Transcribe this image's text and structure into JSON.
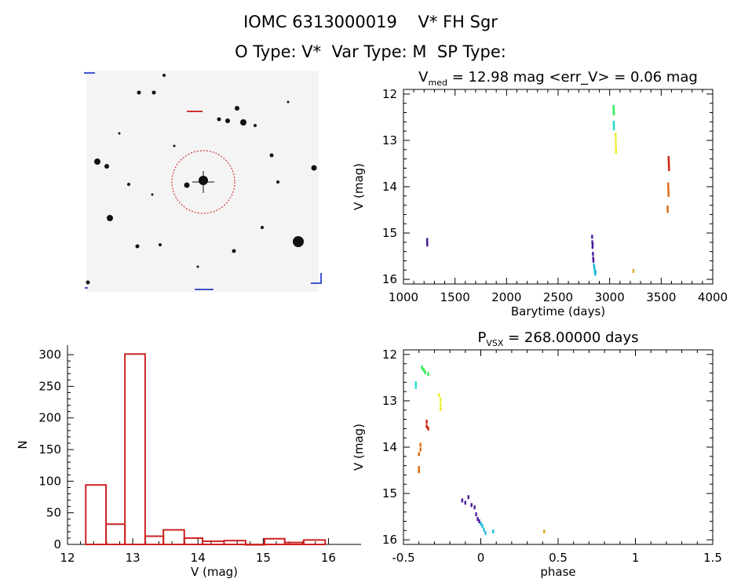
{
  "header": {
    "line1": "IOMC 6313000019    V* FH Sgr",
    "line2": "O Type: V*  Var Type: M  SP Type:"
  },
  "colors": {
    "histogram": "#cc2222",
    "finder_circle": "#cc1111",
    "seg_purple": "#4a1a9a",
    "seg_cyan": "#22bbdd",
    "seg_green": "#33ee55",
    "seg_teal": "#22ddcc",
    "seg_yellow": "#eeee22",
    "seg_red": "#cc2211",
    "seg_orange": "#dd6611",
    "seg_gold": "#ddaa22"
  },
  "chart_data": [
    {
      "id": "lightcurve",
      "type": "scatter",
      "title": "V",
      "title_sub": "med",
      "title_rest": " = 12.98 mag <err_V> = 0.06 mag",
      "xlabel": "Barytime (days)",
      "ylabel": "V (mag)",
      "xlim": [
        1000,
        4000
      ],
      "ylim": [
        16.1,
        11.9
      ],
      "xticks": [
        1000,
        1500,
        2000,
        2500,
        3000,
        3500,
        4000
      ],
      "yticks": [
        12,
        13,
        14,
        15,
        16
      ],
      "series": [
        {
          "color": "#4a1a9a",
          "points": [
            [
              1230,
              15.15
            ],
            [
              1230,
              15.2
            ],
            [
              1231,
              15.25
            ],
            [
              2830,
              15.08
            ],
            [
              2832,
              15.2
            ],
            [
              2834,
              15.3
            ],
            [
              2836,
              15.25
            ],
            [
              2838,
              15.45
            ],
            [
              2840,
              15.55
            ],
            [
              2843,
              15.6
            ]
          ]
        },
        {
          "color": "#22bbdd",
          "points": [
            [
              2848,
              15.7
            ],
            [
              2852,
              15.75
            ],
            [
              2856,
              15.82
            ],
            [
              2860,
              15.88
            ],
            [
              2864,
              15.85
            ]
          ]
        },
        {
          "color": "#33ee55",
          "points": [
            [
              3038,
              12.28
            ],
            [
              3039,
              12.33
            ],
            [
              3040,
              12.38
            ],
            [
              3041,
              12.42
            ]
          ]
        },
        {
          "color": "#22ddcc",
          "points": [
            [
              3040,
              12.62
            ],
            [
              3041,
              12.68
            ],
            [
              3042,
              12.74
            ]
          ]
        },
        {
          "color": "#eeee22",
          "points": [
            [
              3058,
              12.88
            ],
            [
              3059,
              12.98
            ],
            [
              3060,
              13.08
            ],
            [
              3061,
              13.18
            ],
            [
              3062,
              13.25
            ]
          ]
        },
        {
          "color": "#cc2211",
          "points": [
            [
              3572,
              13.38
            ],
            [
              3573,
              13.45
            ],
            [
              3574,
              13.5
            ],
            [
              3575,
              13.56
            ],
            [
              3576,
              13.62
            ]
          ]
        },
        {
          "color": "#dd6611",
          "points": [
            [
              3568,
              13.95
            ],
            [
              3569,
              14.02
            ],
            [
              3570,
              14.1
            ],
            [
              3571,
              14.18
            ],
            [
              3562,
              14.45
            ],
            [
              3563,
              14.52
            ]
          ]
        },
        {
          "color": "#ddaa22",
          "points": [
            [
              3230,
              15.82
            ]
          ]
        }
      ]
    },
    {
      "id": "histogram",
      "type": "bar",
      "xlabel": "V (mag)",
      "ylabel": "N",
      "xlim": [
        12,
        16.5
      ],
      "ylim": [
        0,
        315
      ],
      "xticks": [
        12,
        13,
        14,
        15,
        16
      ],
      "yticks": [
        0,
        50,
        100,
        150,
        200,
        250,
        300
      ],
      "bin_edges": [
        12.28,
        12.59,
        12.88,
        13.19,
        13.47,
        13.79,
        14.07,
        14.4,
        14.73,
        15.02,
        15.33,
        15.62,
        15.95
      ],
      "values": [
        94,
        32,
        301,
        13,
        23,
        10,
        5,
        6,
        0,
        9,
        3,
        7
      ]
    },
    {
      "id": "phased",
      "type": "scatter",
      "title": "P",
      "title_sub": "VSX",
      "title_rest": " = 268.00000 days",
      "xlabel": "phase",
      "ylabel": "V (mag)",
      "xlim": [
        -0.5,
        1.5
      ],
      "ylim": [
        16.1,
        11.9
      ],
      "xticks": [
        -0.5,
        0.0,
        0.5,
        1.0,
        1.5
      ],
      "ytick_labels": [
        12,
        13,
        14,
        15,
        16
      ],
      "series": [
        {
          "color": "#4a1a9a",
          "points": [
            [
              -0.12,
              15.15
            ],
            [
              -0.1,
              15.2
            ],
            [
              -0.08,
              15.08
            ],
            [
              -0.06,
              15.25
            ],
            [
              -0.04,
              15.3
            ],
            [
              -0.03,
              15.45
            ],
            [
              -0.02,
              15.55
            ],
            [
              -0.01,
              15.6
            ]
          ]
        },
        {
          "color": "#22bbdd",
          "points": [
            [
              0.0,
              15.65
            ],
            [
              0.01,
              15.7
            ],
            [
              0.02,
              15.78
            ],
            [
              0.03,
              15.85
            ],
            [
              0.08,
              15.82
            ]
          ]
        },
        {
          "color": "#33ee55",
          "points": [
            [
              -0.38,
              12.28
            ],
            [
              -0.37,
              12.33
            ],
            [
              -0.36,
              12.38
            ],
            [
              -0.34,
              12.42
            ]
          ]
        },
        {
          "color": "#22ddcc",
          "points": [
            [
              -0.42,
              12.62
            ],
            [
              -0.42,
              12.7
            ]
          ]
        },
        {
          "color": "#eeee22",
          "points": [
            [
              -0.27,
              12.88
            ],
            [
              -0.26,
              12.98
            ],
            [
              -0.26,
              13.08
            ],
            [
              -0.26,
              13.18
            ]
          ]
        },
        {
          "color": "#cc2211",
          "points": [
            [
              -0.35,
              13.45
            ],
            [
              -0.35,
              13.55
            ],
            [
              -0.34,
              13.6
            ]
          ]
        },
        {
          "color": "#dd6611",
          "points": [
            [
              -0.39,
              13.95
            ],
            [
              -0.39,
              14.05
            ],
            [
              -0.4,
              14.15
            ],
            [
              -0.4,
              14.45
            ],
            [
              -0.4,
              14.52
            ]
          ]
        },
        {
          "color": "#ddaa22",
          "points": [
            [
              0.41,
              15.82
            ]
          ]
        }
      ]
    }
  ]
}
